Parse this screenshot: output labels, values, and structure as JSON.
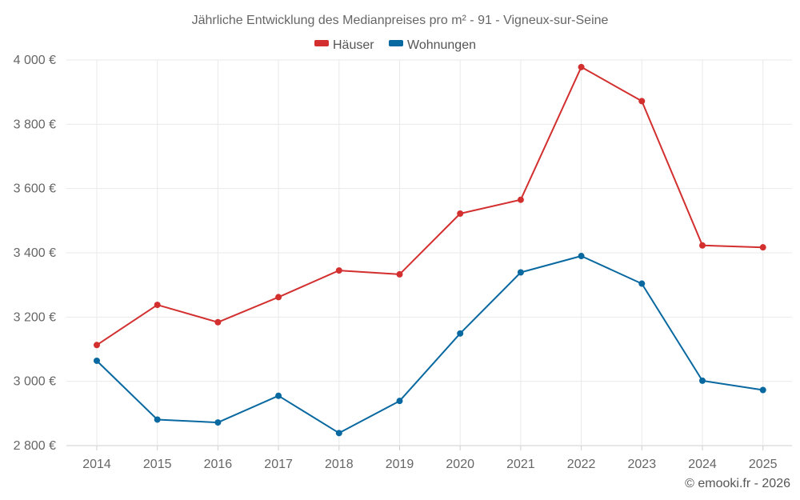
{
  "chart_data": {
    "type": "line",
    "title": "Jährliche Entwicklung des Medianpreises pro m² - 91 - Vigneux-sur-Seine",
    "xlabel": "",
    "ylabel": "",
    "categories": [
      "2014",
      "2015",
      "2016",
      "2017",
      "2018",
      "2019",
      "2020",
      "2021",
      "2022",
      "2023",
      "2024",
      "2025"
    ],
    "ylim": [
      2800,
      4000
    ],
    "yticks": [
      2800,
      3000,
      3200,
      3400,
      3600,
      3800,
      4000
    ],
    "ytick_labels": [
      "2 800 €",
      "3 000 €",
      "3 200 €",
      "3 400 €",
      "3 600 €",
      "3 800 €",
      "4 000 €"
    ],
    "grid": true,
    "legend_position": "top-center",
    "series": [
      {
        "name": "Häuser",
        "color": "#d32f2f",
        "values": [
          3113,
          3238,
          3184,
          3262,
          3345,
          3333,
          3522,
          3565,
          3978,
          3872,
          3423,
          3417
        ]
      },
      {
        "name": "Wohnungen",
        "color": "#0868a0",
        "values": [
          3064,
          2881,
          2872,
          2955,
          2839,
          2939,
          3149,
          3339,
          3390,
          3304,
          3002,
          2973
        ]
      }
    ],
    "credit": "© emooki.fr - 2026"
  }
}
